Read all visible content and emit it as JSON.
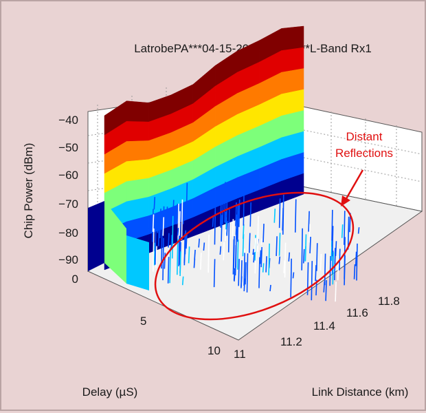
{
  "chart_data": {
    "type": "surface3d",
    "title": "LatrobePA***04-15-2013***FT3***L-Band Rx1",
    "zlabel": "Chip Power (dBm)",
    "xlabel": "Delay (µS)",
    "ylabel": "Link Distance (km)",
    "z_ticks": [
      "0",
      "−90",
      "−80",
      "−70",
      "−60",
      "−50",
      "−40"
    ],
    "delay_ticks": [
      "5",
      "10"
    ],
    "distance_ticks": [
      "11",
      "11.2",
      "11.4",
      "11.6",
      "11.8"
    ],
    "zlim": [
      -95,
      -35
    ],
    "delay_range_us": [
      0,
      10
    ],
    "distance_range_km": [
      11,
      11.9
    ],
    "colormap": [
      "#00008f",
      "#0050ff",
      "#00c8ff",
      "#7dff7a",
      "#ffe600",
      "#ff7a00",
      "#e00000",
      "#800000"
    ],
    "peak_ridge": {
      "delay_us": 1,
      "distance_km": [
        11.0,
        11.1,
        11.2,
        11.3,
        11.4,
        11.5,
        11.6,
        11.7,
        11.8,
        11.9
      ],
      "power_dbm": [
        -48,
        -44,
        -52,
        -53,
        -52,
        -45,
        -41,
        -40,
        -38,
        -43
      ]
    },
    "annotation": {
      "text_line1": "Distant",
      "text_line2": "Reflections",
      "color": "#e01010"
    }
  }
}
